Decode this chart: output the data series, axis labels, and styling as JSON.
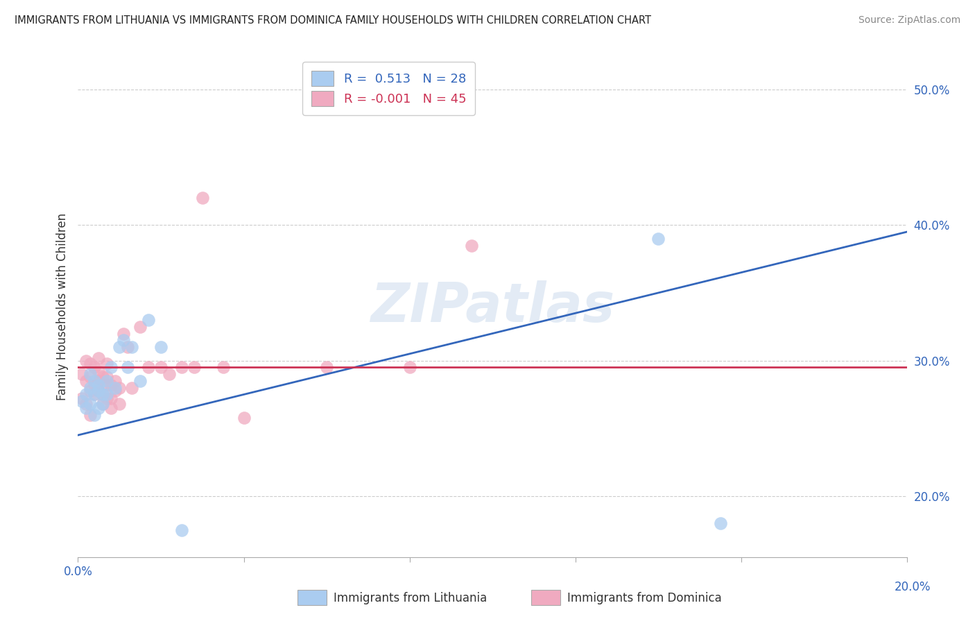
{
  "title": "IMMIGRANTS FROM LITHUANIA VS IMMIGRANTS FROM DOMINICA FAMILY HOUSEHOLDS WITH CHILDREN CORRELATION CHART",
  "source": "Source: ZipAtlas.com",
  "ylabel": "Family Households with Children",
  "legend_label_1": "Immigrants from Lithuania",
  "legend_label_2": "Immigrants from Dominica",
  "r1": 0.513,
  "n1": 28,
  "r2": -0.001,
  "n2": 45,
  "color1": "#aaccf0",
  "color2": "#f0aac0",
  "line_color1": "#3366bb",
  "line_color2": "#cc3355",
  "xlim": [
    0.0,
    0.2
  ],
  "ylim": [
    0.155,
    0.525
  ],
  "x_ticks": [
    0.0,
    0.04,
    0.08,
    0.12,
    0.16,
    0.2
  ],
  "y_ticks": [
    0.2,
    0.3,
    0.4,
    0.5
  ],
  "watermark": "ZIPatlas",
  "scatter_blue_x": [
    0.001,
    0.002,
    0.002,
    0.003,
    0.003,
    0.003,
    0.004,
    0.004,
    0.004,
    0.005,
    0.005,
    0.005,
    0.006,
    0.006,
    0.007,
    0.007,
    0.008,
    0.009,
    0.01,
    0.011,
    0.012,
    0.013,
    0.015,
    0.017,
    0.02,
    0.025,
    0.14,
    0.155
  ],
  "scatter_blue_y": [
    0.27,
    0.275,
    0.265,
    0.28,
    0.268,
    0.29,
    0.275,
    0.285,
    0.26,
    0.278,
    0.265,
    0.282,
    0.275,
    0.268,
    0.285,
    0.275,
    0.295,
    0.28,
    0.31,
    0.315,
    0.295,
    0.31,
    0.285,
    0.33,
    0.31,
    0.175,
    0.39,
    0.18
  ],
  "scatter_pink_x": [
    0.001,
    0.001,
    0.002,
    0.002,
    0.002,
    0.003,
    0.003,
    0.003,
    0.003,
    0.004,
    0.004,
    0.004,
    0.005,
    0.005,
    0.005,
    0.005,
    0.006,
    0.006,
    0.006,
    0.007,
    0.007,
    0.007,
    0.007,
    0.008,
    0.008,
    0.008,
    0.009,
    0.009,
    0.01,
    0.01,
    0.011,
    0.012,
    0.013,
    0.015,
    0.017,
    0.02,
    0.022,
    0.025,
    0.028,
    0.03,
    0.035,
    0.04,
    0.06,
    0.08,
    0.095
  ],
  "scatter_pink_y": [
    0.29,
    0.272,
    0.3,
    0.268,
    0.285,
    0.298,
    0.278,
    0.288,
    0.26,
    0.295,
    0.275,
    0.282,
    0.302,
    0.278,
    0.285,
    0.292,
    0.268,
    0.275,
    0.288,
    0.272,
    0.282,
    0.288,
    0.298,
    0.272,
    0.282,
    0.265,
    0.285,
    0.278,
    0.268,
    0.28,
    0.32,
    0.31,
    0.28,
    0.325,
    0.295,
    0.295,
    0.29,
    0.295,
    0.295,
    0.42,
    0.295,
    0.258,
    0.295,
    0.295,
    0.385
  ],
  "blue_line_x0": 0.0,
  "blue_line_y0": 0.245,
  "blue_line_x1": 0.2,
  "blue_line_y1": 0.395,
  "pink_line_x0": 0.0,
  "pink_line_y0": 0.295,
  "pink_line_x1": 0.2,
  "pink_line_y1": 0.295
}
